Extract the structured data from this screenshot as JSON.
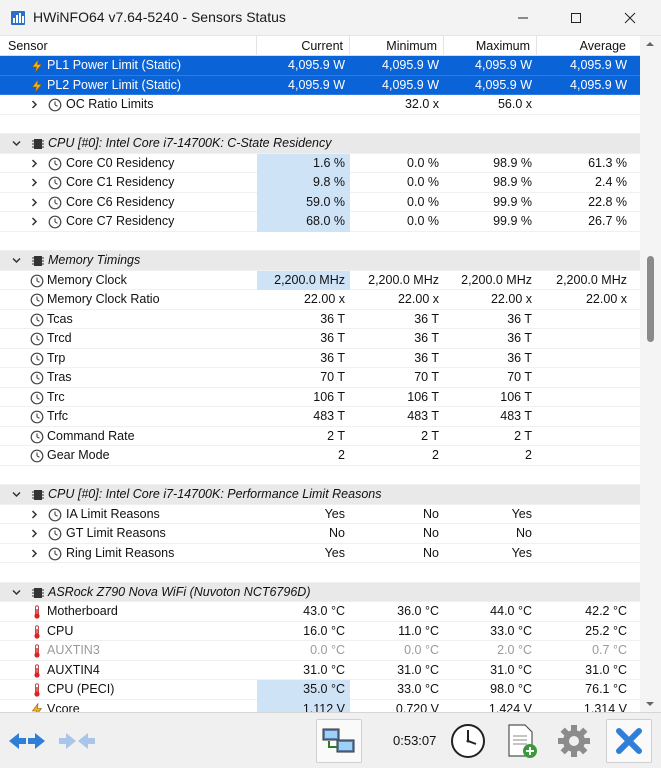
{
  "window": {
    "title": "HWiNFO64 v7.64-5240 - Sensors Status",
    "app_icon": "hwinfo-icon"
  },
  "columns": {
    "sensor": "Sensor",
    "current": "Current",
    "minimum": "Minimum",
    "maximum": "Maximum",
    "average": "Average"
  },
  "rows": [
    {
      "type": "sensor",
      "name": "PL1 Power Limit (Static)",
      "icon": "bolt-icon",
      "selected": true,
      "values": [
        "4,095.9 W",
        "4,095.9 W",
        "4,095.9 W",
        "4,095.9 W"
      ]
    },
    {
      "type": "sensor",
      "name": "PL2 Power Limit (Static)",
      "icon": "bolt-icon",
      "selected": true,
      "values": [
        "4,095.9 W",
        "4,095.9 W",
        "4,095.9 W",
        "4,095.9 W"
      ]
    },
    {
      "type": "sensor",
      "name": "OC Ratio Limits",
      "icon": "clock-icon",
      "expand": true,
      "values": [
        "",
        "32.0 x",
        "56.0 x",
        ""
      ]
    },
    {
      "type": "blank"
    },
    {
      "type": "group",
      "name": "CPU [#0]: Intel Core i7-14700K: C-State Residency",
      "icon": "chip-icon"
    },
    {
      "type": "sensor",
      "name": "Core C0 Residency",
      "icon": "clock-icon",
      "expand": true,
      "hl": true,
      "values": [
        "1.6 %",
        "0.0 %",
        "98.9 %",
        "61.3 %"
      ]
    },
    {
      "type": "sensor",
      "name": "Core C1 Residency",
      "icon": "clock-icon",
      "expand": true,
      "hl": true,
      "values": [
        "9.8 %",
        "0.0 %",
        "98.9 %",
        "2.4 %"
      ]
    },
    {
      "type": "sensor",
      "name": "Core C6 Residency",
      "icon": "clock-icon",
      "expand": true,
      "hl": true,
      "values": [
        "59.0 %",
        "0.0 %",
        "99.9 %",
        "22.8 %"
      ]
    },
    {
      "type": "sensor",
      "name": "Core C7 Residency",
      "icon": "clock-icon",
      "expand": true,
      "hl": true,
      "values": [
        "68.0 %",
        "0.0 %",
        "99.9 %",
        "26.7 %"
      ]
    },
    {
      "type": "blank"
    },
    {
      "type": "group",
      "name": "Memory Timings",
      "icon": "chip-icon"
    },
    {
      "type": "sensor",
      "name": "Memory Clock",
      "icon": "clock-icon",
      "hl": true,
      "values": [
        "2,200.0 MHz",
        "2,200.0 MHz",
        "2,200.0 MHz",
        "2,200.0 MHz"
      ]
    },
    {
      "type": "sensor",
      "name": "Memory Clock Ratio",
      "icon": "clock-icon",
      "values": [
        "22.00 x",
        "22.00 x",
        "22.00 x",
        "22.00 x"
      ]
    },
    {
      "type": "sensor",
      "name": "Tcas",
      "icon": "clock-icon",
      "values": [
        "36 T",
        "36 T",
        "36 T",
        ""
      ]
    },
    {
      "type": "sensor",
      "name": "Trcd",
      "icon": "clock-icon",
      "values": [
        "36 T",
        "36 T",
        "36 T",
        ""
      ]
    },
    {
      "type": "sensor",
      "name": "Trp",
      "icon": "clock-icon",
      "values": [
        "36 T",
        "36 T",
        "36 T",
        ""
      ]
    },
    {
      "type": "sensor",
      "name": "Tras",
      "icon": "clock-icon",
      "values": [
        "70 T",
        "70 T",
        "70 T",
        ""
      ]
    },
    {
      "type": "sensor",
      "name": "Trc",
      "icon": "clock-icon",
      "values": [
        "106 T",
        "106 T",
        "106 T",
        ""
      ]
    },
    {
      "type": "sensor",
      "name": "Trfc",
      "icon": "clock-icon",
      "values": [
        "483 T",
        "483 T",
        "483 T",
        ""
      ]
    },
    {
      "type": "sensor",
      "name": "Command Rate",
      "icon": "clock-icon",
      "values": [
        "2 T",
        "2 T",
        "2 T",
        ""
      ]
    },
    {
      "type": "sensor",
      "name": "Gear Mode",
      "icon": "clock-icon",
      "values": [
        "2",
        "2",
        "2",
        ""
      ]
    },
    {
      "type": "blank"
    },
    {
      "type": "group",
      "name": "CPU [#0]: Intel Core i7-14700K: Performance Limit Reasons",
      "icon": "chip-icon"
    },
    {
      "type": "sensor",
      "name": "IA Limit Reasons",
      "icon": "clock-icon",
      "expand": true,
      "values": [
        "Yes",
        "No",
        "Yes",
        ""
      ]
    },
    {
      "type": "sensor",
      "name": "GT Limit Reasons",
      "icon": "clock-icon",
      "expand": true,
      "values": [
        "No",
        "No",
        "No",
        ""
      ]
    },
    {
      "type": "sensor",
      "name": "Ring Limit Reasons",
      "icon": "clock-icon",
      "expand": true,
      "values": [
        "Yes",
        "No",
        "Yes",
        ""
      ]
    },
    {
      "type": "blank"
    },
    {
      "type": "group",
      "name": "ASRock Z790 Nova WiFi (Nuvoton NCT6796D)",
      "icon": "chip-icon"
    },
    {
      "type": "sensor",
      "name": "Motherboard",
      "icon": "thermometer-icon",
      "values": [
        "43.0 °C",
        "36.0 °C",
        "44.0 °C",
        "42.2 °C"
      ]
    },
    {
      "type": "sensor",
      "name": "CPU",
      "icon": "thermometer-icon",
      "values": [
        "16.0 °C",
        "11.0 °C",
        "33.0 °C",
        "25.2 °C"
      ]
    },
    {
      "type": "sensor",
      "name": "AUXTIN3",
      "icon": "thermometer-icon",
      "grey": true,
      "values": [
        "0.0 °C",
        "0.0 °C",
        "2.0 °C",
        "0.7 °C"
      ]
    },
    {
      "type": "sensor",
      "name": "AUXTIN4",
      "icon": "thermometer-icon",
      "values": [
        "31.0 °C",
        "31.0 °C",
        "31.0 °C",
        "31.0 °C"
      ]
    },
    {
      "type": "sensor",
      "name": "CPU (PECI)",
      "icon": "thermometer-icon",
      "hl": true,
      "values": [
        "35.0 °C",
        "33.0 °C",
        "98.0 °C",
        "76.1 °C"
      ]
    },
    {
      "type": "sensor",
      "name": "Vcore",
      "icon": "bolt-icon",
      "hl": true,
      "values": [
        "1.112 V",
        "0.720 V",
        "1.424 V",
        "1.314 V"
      ]
    }
  ],
  "toolbar": {
    "timer": "0:53:07"
  },
  "colors": {
    "selection": "#0a64d8",
    "highlight": "#cfe3f7",
    "group": "#e9e9e9"
  }
}
